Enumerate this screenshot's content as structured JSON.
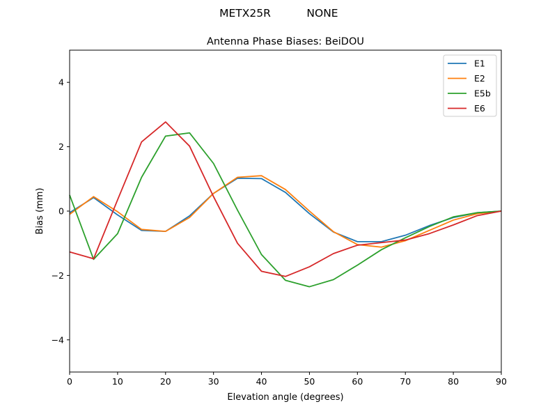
{
  "header": {
    "antenna": "METX25R",
    "radome": "NONE"
  },
  "chart_data": {
    "type": "line",
    "title": "Antenna Phase Biases: BeiDOU",
    "xlabel": "Elevation angle (degrees)",
    "ylabel": "Bias (mm)",
    "xlim": [
      0,
      90
    ],
    "ylim": [
      -5,
      5
    ],
    "xticks": [
      0,
      10,
      20,
      30,
      40,
      50,
      60,
      70,
      80,
      90
    ],
    "yticks": [
      -4,
      -2,
      0,
      2,
      4
    ],
    "xtick_labels": [
      "0",
      "10",
      "20",
      "30",
      "40",
      "50",
      "60",
      "70",
      "80",
      "90"
    ],
    "ytick_labels": [
      "−4",
      "−2",
      "0",
      "2",
      "4"
    ],
    "grid": false,
    "legend_position": "top-right",
    "x": [
      0,
      5,
      10,
      15,
      20,
      25,
      30,
      35,
      40,
      45,
      50,
      55,
      60,
      65,
      70,
      75,
      80,
      85,
      90
    ],
    "series": [
      {
        "name": "E1",
        "color": "#1f77b4",
        "values": [
          -0.05,
          0.42,
          -0.12,
          -0.6,
          -0.63,
          -0.15,
          0.55,
          1.02,
          1.01,
          0.58,
          -0.08,
          -0.65,
          -0.95,
          -0.95,
          -0.75,
          -0.45,
          -0.2,
          -0.05,
          0.0
        ]
      },
      {
        "name": "E2",
        "color": "#ff7f0e",
        "values": [
          -0.1,
          0.45,
          -0.02,
          -0.57,
          -0.63,
          -0.2,
          0.55,
          1.05,
          1.1,
          0.67,
          0.0,
          -0.64,
          -1.04,
          -1.12,
          -0.92,
          -0.6,
          -0.28,
          -0.08,
          0.0
        ]
      },
      {
        "name": "E5b",
        "color": "#2ca02c",
        "values": [
          0.5,
          -1.5,
          -0.7,
          1.05,
          2.33,
          2.43,
          1.48,
          0.03,
          -1.35,
          -2.15,
          -2.35,
          -2.13,
          -1.68,
          -1.2,
          -0.83,
          -0.48,
          -0.18,
          -0.05,
          0.0
        ]
      },
      {
        "name": "E6",
        "color": "#d62728",
        "values": [
          -1.27,
          -1.48,
          0.35,
          2.15,
          2.77,
          2.02,
          0.45,
          -1.0,
          -1.87,
          -2.03,
          -1.73,
          -1.32,
          -1.06,
          -0.98,
          -0.9,
          -0.7,
          -0.43,
          -0.14,
          0.0
        ]
      }
    ]
  }
}
